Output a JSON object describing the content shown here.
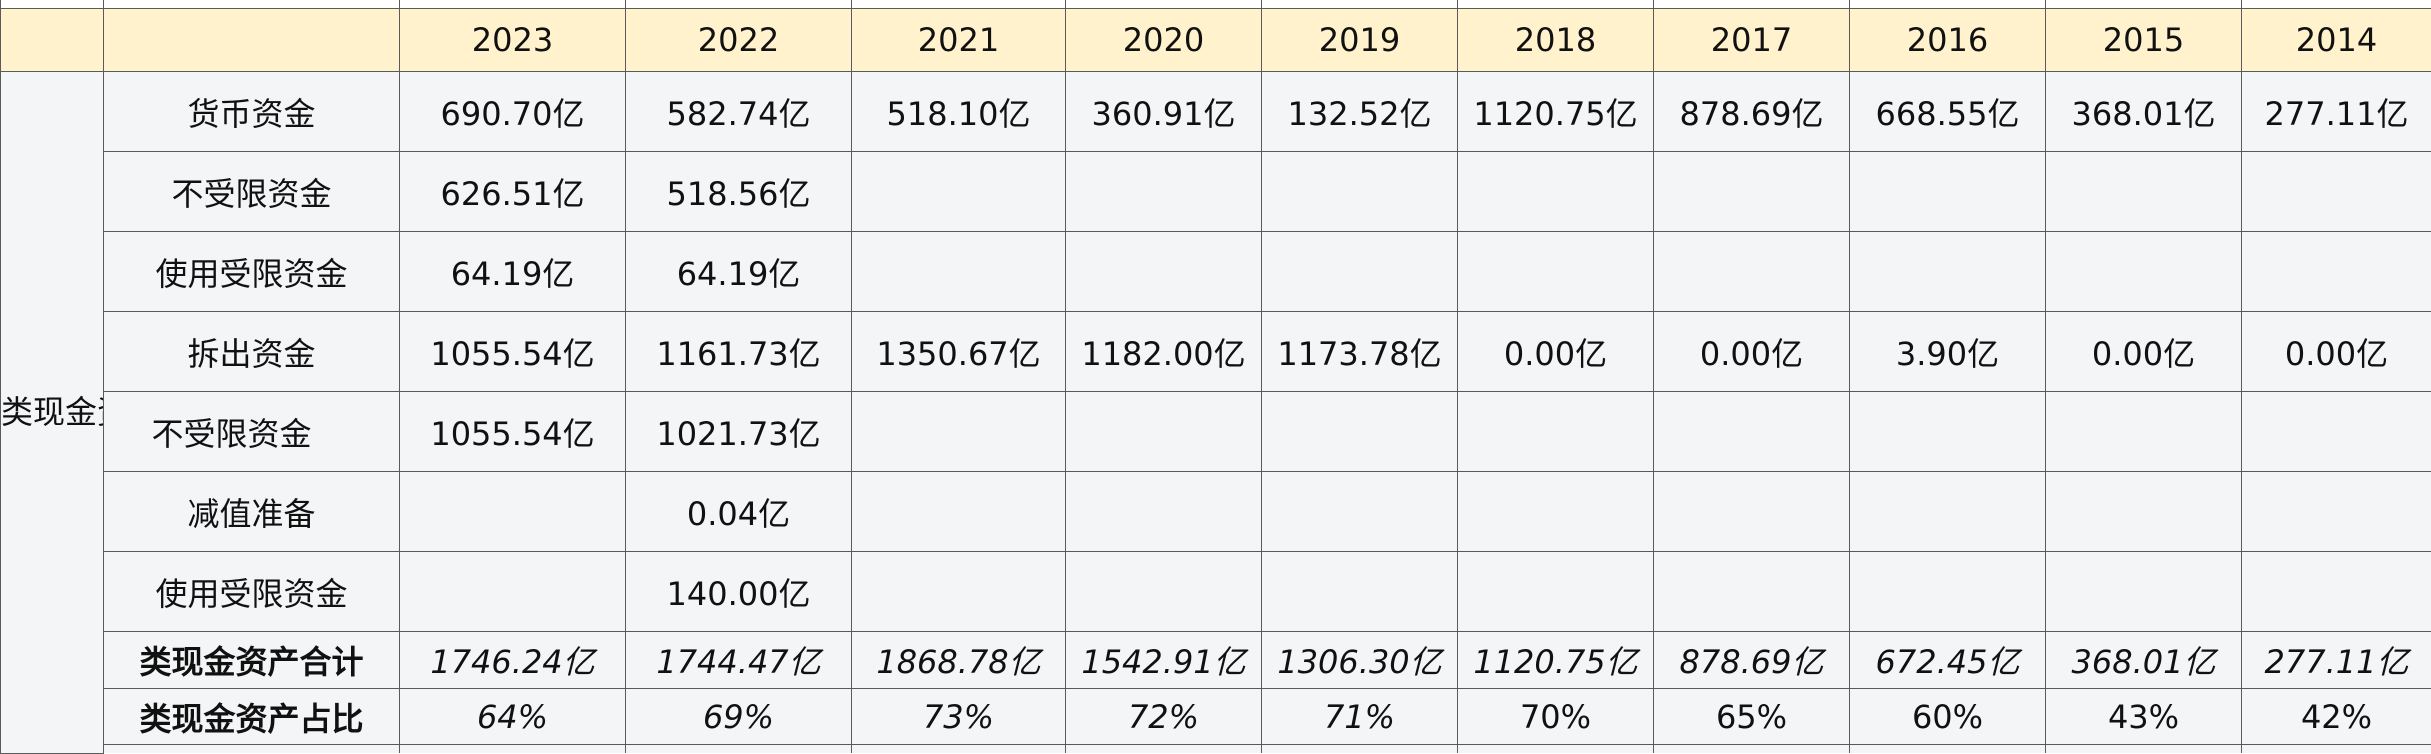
{
  "years": [
    "2023",
    "2022",
    "2021",
    "2020",
    "2019",
    "2018",
    "2017",
    "2016",
    "2015",
    "2014"
  ],
  "category": "类现金资产",
  "rows": [
    {
      "label": "货币资金",
      "values": [
        "690.70亿",
        "582.74亿",
        "518.10亿",
        "360.91亿",
        "132.52亿",
        "1120.75亿",
        "878.69亿",
        "668.55亿",
        "368.01亿",
        "277.11亿"
      ]
    },
    {
      "label": "不受限资金",
      "values": [
        "626.51亿",
        "518.56亿",
        "",
        "",
        "",
        "",
        "",
        "",
        "",
        ""
      ]
    },
    {
      "label": "使用受限资金",
      "values": [
        "64.19亿",
        "64.19亿",
        "",
        "",
        "",
        "",
        "",
        "",
        "",
        ""
      ]
    },
    {
      "label": "拆出资金",
      "values": [
        "1055.54亿",
        "1161.73亿",
        "1350.67亿",
        "1182.00亿",
        "1173.78亿",
        "0.00亿",
        "0.00亿",
        "3.90亿",
        "0.00亿",
        "0.00亿"
      ]
    },
    {
      "label": "不受限资金",
      "values": [
        "1055.54亿",
        "1021.73亿",
        "",
        "",
        "",
        "",
        "",
        "",
        "",
        ""
      ]
    },
    {
      "label": "减值准备",
      "values": [
        "",
        "0.04亿",
        "",
        "",
        "",
        "",
        "",
        "",
        "",
        ""
      ]
    },
    {
      "label": "使用受限资金",
      "values": [
        "",
        "140.00亿",
        "",
        "",
        "",
        "",
        "",
        "",
        "",
        ""
      ]
    },
    {
      "label": "类现金资产合计",
      "values": [
        "1746.24亿",
        "1744.47亿",
        "1868.78亿",
        "1542.91亿",
        "1306.30亿",
        "1120.75亿",
        "878.69亿",
        "672.45亿",
        "368.01亿",
        "277.11亿"
      ]
    },
    {
      "label": "类现金资产占比",
      "values": [
        "64%",
        "69%",
        "73%",
        "72%",
        "71%",
        "70%",
        "65%",
        "60%",
        "43%",
        "42%"
      ]
    }
  ]
}
